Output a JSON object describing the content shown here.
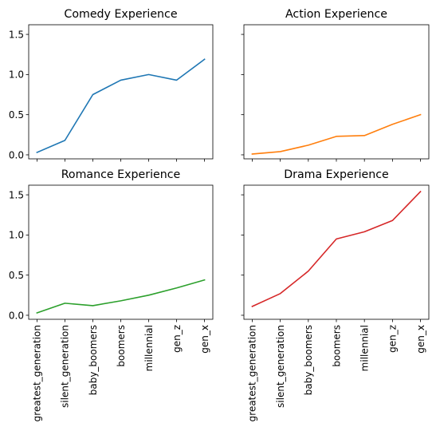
{
  "chart_data": [
    {
      "type": "line",
      "title": "Comedy Experience",
      "categories": [
        "greatest_generation",
        "silent_generation",
        "baby_boomers",
        "boomers",
        "millennial",
        "gen_z",
        "gen_x"
      ],
      "series": [
        {
          "values": [
            0.03,
            0.18,
            0.75,
            0.93,
            1.0,
            0.93,
            1.19
          ],
          "color": "#1f77b4"
        }
      ],
      "ylim": [
        -0.05,
        1.62
      ],
      "yticks": [
        "0.0",
        "0.5",
        "1.0",
        "1.5"
      ],
      "show_xticklabels": false,
      "show_yticklabels": true
    },
    {
      "type": "line",
      "title": "Action Experience",
      "categories": [
        "greatest_generation",
        "silent_generation",
        "baby_boomers",
        "boomers",
        "millennial",
        "gen_z",
        "gen_x"
      ],
      "series": [
        {
          "values": [
            0.01,
            0.04,
            0.12,
            0.23,
            0.24,
            0.38,
            0.5
          ],
          "color": "#ff7f0e"
        }
      ],
      "ylim": [
        -0.05,
        1.62
      ],
      "yticks": [
        "0.0",
        "0.5",
        "1.0",
        "1.5"
      ],
      "show_xticklabels": false,
      "show_yticklabels": false
    },
    {
      "type": "line",
      "title": "Romance Experience",
      "categories": [
        "greatest_generation",
        "silent_generation",
        "baby_boomers",
        "boomers",
        "millennial",
        "gen_z",
        "gen_x"
      ],
      "series": [
        {
          "values": [
            0.03,
            0.15,
            0.12,
            0.18,
            0.25,
            0.34,
            0.44
          ],
          "color": "#2ca02c"
        }
      ],
      "ylim": [
        -0.05,
        1.62
      ],
      "yticks": [
        "0.0",
        "0.5",
        "1.0",
        "1.5"
      ],
      "show_xticklabels": true,
      "show_yticklabels": true
    },
    {
      "type": "line",
      "title": "Drama Experience",
      "categories": [
        "greatest_generation",
        "silent_generation",
        "baby_boomers",
        "boomers",
        "millennial",
        "gen_z",
        "gen_x"
      ],
      "series": [
        {
          "values": [
            0.11,
            0.27,
            0.55,
            0.95,
            1.04,
            1.18,
            1.54
          ],
          "color": "#d62728"
        }
      ],
      "ylim": [
        -0.05,
        1.62
      ],
      "yticks": [
        "0.0",
        "0.5",
        "1.0",
        "1.5"
      ],
      "show_xticklabels": true,
      "show_yticklabels": false
    }
  ]
}
